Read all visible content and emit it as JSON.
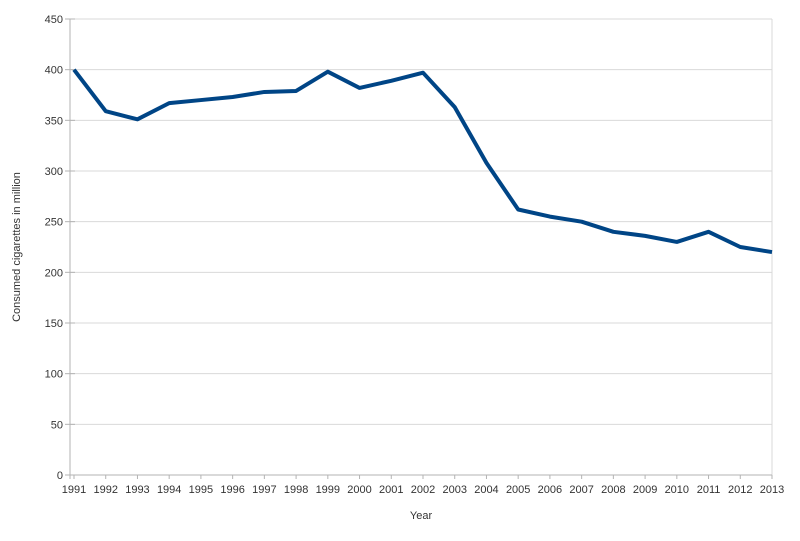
{
  "window": {
    "background": "#ffffff"
  },
  "chart_data": {
    "type": "line",
    "title": "",
    "xlabel": "Year",
    "ylabel": "Consumed cigarettes in million",
    "x": [
      1991,
      1992,
      1993,
      1994,
      1995,
      1996,
      1997,
      1998,
      1999,
      2000,
      2001,
      2002,
      2003,
      2004,
      2005,
      2006,
      2007,
      2008,
      2009,
      2010,
      2011,
      2012,
      2013
    ],
    "values": [
      400,
      359,
      351,
      367,
      370,
      373,
      378,
      379,
      398,
      382,
      389,
      397,
      363,
      308,
      262,
      255,
      250,
      240,
      236,
      230,
      240,
      225,
      220
    ],
    "ylim": [
      0,
      450
    ],
    "ytick_step": 50,
    "grid": true,
    "legend": "none",
    "colors": {
      "line": "#004586",
      "grid": "#d9d9d9",
      "axis": "#b3b3b3",
      "text": "#333333"
    }
  }
}
